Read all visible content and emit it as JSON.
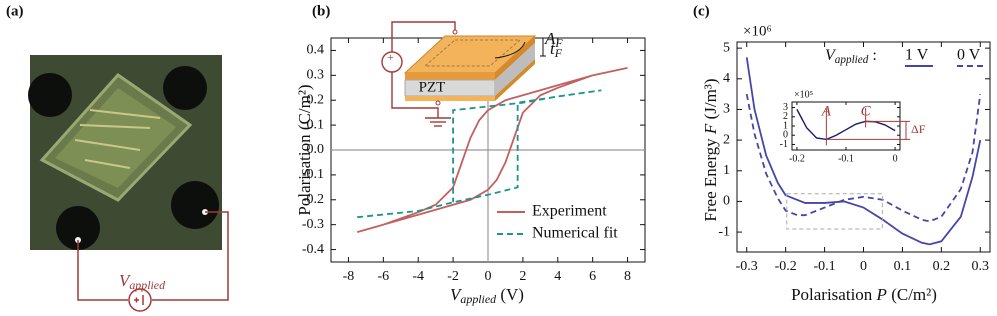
{
  "panel_a": {
    "label": "(a)",
    "source_label": {
      "symbol": "V",
      "subscript": "applied"
    }
  },
  "chart_data": [
    {
      "type": "line",
      "panel_label": "(b)",
      "xlabel": {
        "symbol": "V",
        "subscript": "applied",
        "suffix": " (V)"
      },
      "ylabel": {
        "prefix": "Polarisation (C/m²)"
      },
      "xlim": [
        -9,
        9
      ],
      "ylim": [
        -0.45,
        0.45
      ],
      "xticks": [
        -8,
        -6,
        -4,
        -2,
        0,
        2,
        4,
        6,
        8
      ],
      "yticks": [
        0.4,
        0.3,
        0.2,
        0.1,
        {
          "value": 0,
          "label": "0.0"
        },
        -0.1,
        -0.2,
        -0.3,
        -0.4
      ],
      "zero_lines": true,
      "legend": "lower right",
      "series": [
        {
          "name": "Experiment",
          "color": "#c2605f",
          "style": "solid",
          "x": [
            8,
            6,
            4,
            2,
            1,
            0,
            -0.5,
            -1,
            -1.5,
            -2,
            -3,
            -4,
            -6,
            -7.5,
            -6,
            -4,
            -2,
            -1,
            0,
            0.5,
            1,
            1.5,
            2,
            3,
            4,
            6,
            8
          ],
          "values": [
            0.33,
            0.3,
            0.26,
            0.22,
            0.2,
            0.16,
            0.12,
            0.05,
            -0.05,
            -0.15,
            -0.22,
            -0.25,
            -0.3,
            -0.33,
            -0.3,
            -0.26,
            -0.22,
            -0.2,
            -0.16,
            -0.12,
            -0.05,
            0.05,
            0.15,
            0.22,
            0.25,
            0.3,
            0.33
          ]
        },
        {
          "name": "Numerical fit",
          "color": "#1a9590",
          "style": "dashed",
          "x": [
            -7.5,
            -4,
            -2,
            0,
            1.7,
            1.7,
            4,
            6.5,
            4,
            2,
            0,
            -2,
            -2
          ],
          "values": [
            -0.27,
            -0.245,
            -0.21,
            -0.18,
            -0.15,
            0.19,
            0.215,
            0.24,
            0.215,
            0.19,
            0.175,
            0.16,
            -0.21
          ]
        }
      ],
      "inset": {
        "material": "PZT",
        "area_label": {
          "symbol": "A",
          "subscript": "F"
        },
        "thickness_label": {
          "symbol": "t",
          "subscript": "F"
        }
      }
    },
    {
      "type": "line",
      "panel_label": "(c)",
      "multiplier": "×10⁶",
      "xlabel": {
        "prefix": "Polarisation ",
        "symbol": "P",
        "suffix": " (C/m²)"
      },
      "ylabel": {
        "prefix": "Free Energy ",
        "symbol": "F",
        "suffix": " (J/m³)"
      },
      "xlim": [
        -0.325,
        0.325
      ],
      "ylim": [
        -1.65,
        5.2
      ],
      "xticks": [
        -0.3,
        -0.2,
        -0.1,
        0,
        0.1,
        0.2,
        0.3
      ],
      "yticks": [
        5,
        4,
        3,
        2,
        1,
        0,
        -1
      ],
      "legend": "upper right",
      "legend_title": {
        "symbol": "V",
        "subscript": "applied",
        "suffix": " :"
      },
      "series": [
        {
          "name": "1 V",
          "color": "#4646a8",
          "style": "solid",
          "x": [
            -0.3,
            -0.28,
            -0.25,
            -0.22,
            -0.2,
            -0.15,
            -0.1,
            -0.05,
            0,
            0.05,
            0.1,
            0.15,
            0.17,
            0.2,
            0.25,
            0.28,
            0.3
          ],
          "values": [
            4.7,
            3.0,
            1.5,
            0.6,
            0.2,
            -0.05,
            -0.05,
            0.0,
            -0.2,
            -0.6,
            -1.05,
            -1.35,
            -1.4,
            -1.3,
            -0.5,
            0.8,
            2.0
          ]
        },
        {
          "name": "0 V",
          "color": "#4646a8",
          "style": "dashed",
          "x": [
            -0.3,
            -0.28,
            -0.25,
            -0.22,
            -0.2,
            -0.17,
            -0.15,
            -0.1,
            -0.05,
            0,
            0.05,
            0.1,
            0.15,
            0.17,
            0.2,
            0.25,
            0.28,
            0.3
          ],
          "values": [
            3.5,
            2.2,
            0.9,
            0.1,
            -0.3,
            -0.45,
            -0.45,
            -0.2,
            0.05,
            0.15,
            0.05,
            -0.3,
            -0.6,
            -0.65,
            -0.5,
            0.4,
            1.6,
            3.5
          ]
        }
      ],
      "inset": {
        "type": "line",
        "multiplier": "×10⁵",
        "xlim": [
          -0.21,
          0.01
        ],
        "ylim": [
          -1.6,
          3.6
        ],
        "xticks": [
          -0.2,
          -0.1,
          0
        ],
        "yticks": [
          3,
          2,
          1,
          0,
          -1
        ],
        "series": [
          {
            "color": "#1a1a6e",
            "style": "solid",
            "x": [
              -0.2,
              -0.18,
              -0.16,
              -0.14,
              -0.12,
              -0.1,
              -0.08,
              -0.06,
              -0.04,
              -0.02,
              0
            ],
            "values": [
              2.8,
              0.8,
              -0.3,
              -0.45,
              0.0,
              0.6,
              1.2,
              1.5,
              1.45,
              1.1,
              0.5
            ]
          }
        ],
        "annotations": [
          {
            "text": "A",
            "x": -0.14
          },
          {
            "text": "C",
            "x": -0.06
          }
        ],
        "delta_label": "ΔF"
      }
    }
  ]
}
